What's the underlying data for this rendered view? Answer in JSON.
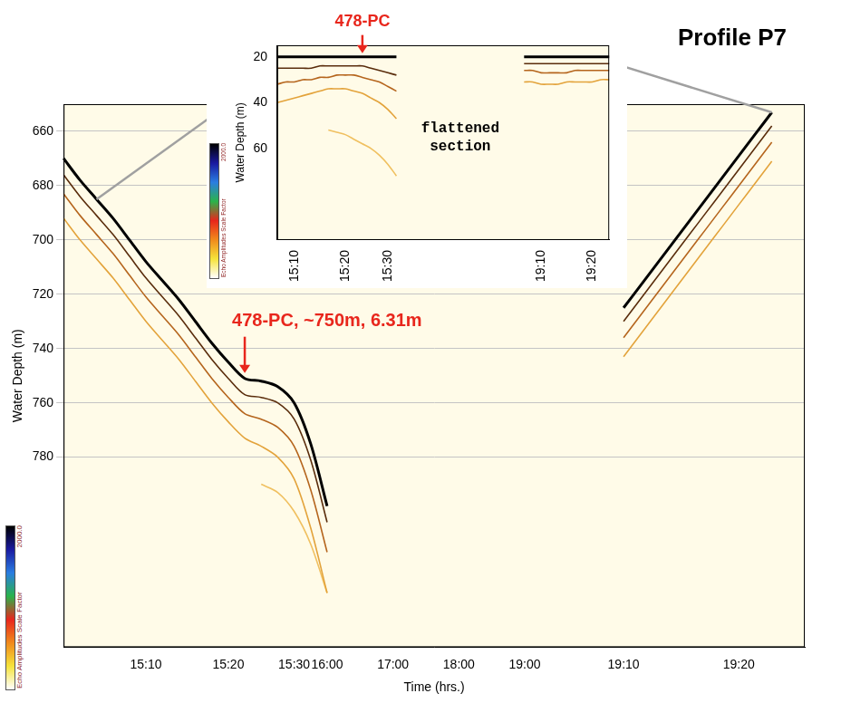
{
  "chart_data": [
    {
      "type": "line",
      "title": "Profile P7",
      "x_label": "Time (hrs.)",
      "y_label": "Water Depth (m)",
      "categories": [
        null,
        null,
        null,
        null,
        null,
        "15:10",
        null,
        null,
        null,
        null,
        "15:20",
        null,
        null,
        null,
        "15:30",
        null,
        "16:00",
        null,
        null,
        null,
        "17:00",
        null,
        null,
        null,
        "18:00",
        null,
        null,
        null,
        "19:00",
        null,
        null,
        null,
        null,
        null,
        "19:10",
        null,
        null,
        null,
        null,
        null,
        null,
        "19:20",
        null,
        null,
        null,
        null
      ],
      "series": [
        {
          "color": "#000000",
          "values": [
            670,
            678,
            685,
            692,
            700,
            708,
            715,
            722,
            730,
            738,
            745,
            751,
            752,
            754,
            760,
            775,
            798,
            null,
            null,
            null,
            null,
            null,
            null,
            null,
            null,
            null,
            null,
            null,
            null,
            null,
            null,
            null,
            null,
            null,
            725,
            717,
            709,
            701,
            693,
            685,
            677,
            669,
            661,
            653,
            null,
            null
          ]
        },
        {
          "color": "#5a2d0c",
          "values": [
            676,
            684,
            691,
            698,
            706,
            714,
            721,
            728,
            736,
            744,
            751,
            757,
            758,
            760,
            766,
            781,
            804,
            null,
            null,
            null,
            null,
            null,
            null,
            null,
            null,
            null,
            null,
            null,
            null,
            null,
            null,
            null,
            null,
            null,
            730,
            722,
            714,
            706,
            698,
            690,
            682,
            674,
            666,
            658,
            null,
            null
          ]
        },
        {
          "color": "#b5651d",
          "values": [
            683,
            691,
            698,
            705,
            713,
            721,
            728,
            735,
            743,
            751,
            758,
            764,
            766,
            769,
            776,
            792,
            815,
            null,
            null,
            null,
            null,
            null,
            null,
            null,
            null,
            null,
            null,
            null,
            null,
            null,
            null,
            null,
            null,
            null,
            736,
            728,
            720,
            712,
            704,
            696,
            688,
            680,
            672,
            664,
            null,
            null
          ]
        },
        {
          "color": "#e3a33b",
          "values": [
            692,
            700,
            707,
            714,
            722,
            730,
            737,
            744,
            752,
            760,
            767,
            773,
            776,
            780,
            788,
            806,
            830,
            null,
            null,
            null,
            null,
            null,
            null,
            null,
            null,
            null,
            null,
            null,
            null,
            null,
            null,
            null,
            null,
            null,
            743,
            735,
            727,
            719,
            711,
            703,
            695,
            687,
            679,
            671,
            null,
            null
          ]
        },
        {
          "color": "#f0c060",
          "values": [
            null,
            null,
            null,
            null,
            null,
            null,
            null,
            null,
            null,
            null,
            null,
            null,
            790,
            793,
            800,
            812,
            830,
            null,
            null,
            null,
            null,
            null,
            null,
            null,
            null,
            null,
            null,
            null,
            null,
            null,
            null,
            null,
            null,
            null,
            null,
            null,
            null,
            null,
            null,
            null,
            null,
            null,
            null,
            null,
            null,
            null
          ]
        }
      ],
      "ylim": [
        850,
        650
      ],
      "yticks": [
        660,
        680,
        700,
        720,
        740,
        760,
        780
      ],
      "grid": true,
      "annotations": [
        {
          "text": "478-PC, ~750m, 6.31m",
          "color": "#e8261c"
        }
      ],
      "colorbar": {
        "title": "Echo Amplitudes  Scale Factor",
        "range": [
          0,
          2000
        ],
        "ticks": [
          {
            "value": 2000,
            "label": "2000.0"
          }
        ],
        "colors": [
          "#000000",
          "#1a1aa0",
          "#2a7de1",
          "#2ab34a",
          "#e8261c",
          "#f08a1c",
          "#f5e33a",
          "#ffffff"
        ]
      }
    },
    {
      "type": "line",
      "y_label": "Water Depth (m)",
      "categories": [
        null,
        null,
        "15:10",
        null,
        null,
        null,
        null,
        null,
        "15:20",
        null,
        null,
        null,
        null,
        "15:30",
        null,
        null,
        null,
        null,
        null,
        null,
        null,
        null,
        null,
        null,
        null,
        null,
        null,
        null,
        null,
        null,
        null,
        "19:10",
        null,
        null,
        null,
        null,
        null,
        "19:20",
        null,
        null
      ],
      "series": [
        {
          "color": "#000000",
          "values": [
            20,
            20,
            20,
            20,
            20,
            20,
            20,
            20,
            20,
            20,
            20,
            20,
            20,
            20,
            20,
            null,
            null,
            null,
            null,
            null,
            null,
            null,
            null,
            null,
            null,
            null,
            null,
            null,
            null,
            20,
            20,
            20,
            20,
            20,
            20,
            20,
            20,
            20,
            20,
            20
          ]
        },
        {
          "color": "#5a2d0c",
          "values": [
            25,
            25,
            25,
            25,
            25,
            24,
            24,
            24,
            24,
            24,
            24,
            25,
            26,
            27,
            28,
            null,
            null,
            null,
            null,
            null,
            null,
            null,
            null,
            null,
            null,
            null,
            null,
            null,
            null,
            23,
            23,
            23,
            23,
            23,
            23,
            23,
            23,
            23,
            23,
            23
          ]
        },
        {
          "color": "#b5651d",
          "values": [
            32,
            31,
            31,
            30,
            30,
            29,
            29,
            28,
            28,
            28,
            29,
            30,
            31,
            33,
            35,
            null,
            null,
            null,
            null,
            null,
            null,
            null,
            null,
            null,
            null,
            null,
            null,
            null,
            null,
            26,
            26,
            27,
            27,
            27,
            27,
            26,
            26,
            26,
            26,
            26
          ]
        },
        {
          "color": "#e3a33b",
          "values": [
            40,
            39,
            38,
            37,
            36,
            35,
            34,
            34,
            34,
            35,
            36,
            38,
            40,
            43,
            47,
            null,
            null,
            null,
            null,
            null,
            null,
            null,
            null,
            null,
            null,
            null,
            null,
            null,
            null,
            31,
            31,
            32,
            32,
            32,
            31,
            31,
            31,
            31,
            30,
            30
          ]
        },
        {
          "color": "#f0c060",
          "values": [
            null,
            null,
            null,
            null,
            null,
            null,
            52,
            53,
            54,
            56,
            58,
            60,
            63,
            67,
            72,
            null,
            null,
            null,
            null,
            null,
            null,
            null,
            null,
            null,
            null,
            null,
            null,
            null,
            null,
            null,
            null,
            null,
            null,
            null,
            null,
            null,
            null,
            null,
            null,
            null
          ]
        }
      ],
      "ylim": [
        100,
        15
      ],
      "yticks": [
        20,
        40,
        60
      ],
      "grid": false,
      "annotations": [
        {
          "text": "478-PC",
          "color": "#e8261c"
        },
        {
          "text": "flattened section"
        }
      ],
      "colorbar": {
        "title": "Echo Amplitudes  Scale Factor",
        "range": [
          0,
          2000
        ],
        "ticks": [
          {
            "value": 2000,
            "label": "2000.0"
          }
        ],
        "colors": [
          "#000000",
          "#1a1aa0",
          "#2a7de1",
          "#2ab34a",
          "#e8261c",
          "#f08a1c",
          "#f5e33a",
          "#ffffff"
        ]
      }
    }
  ]
}
